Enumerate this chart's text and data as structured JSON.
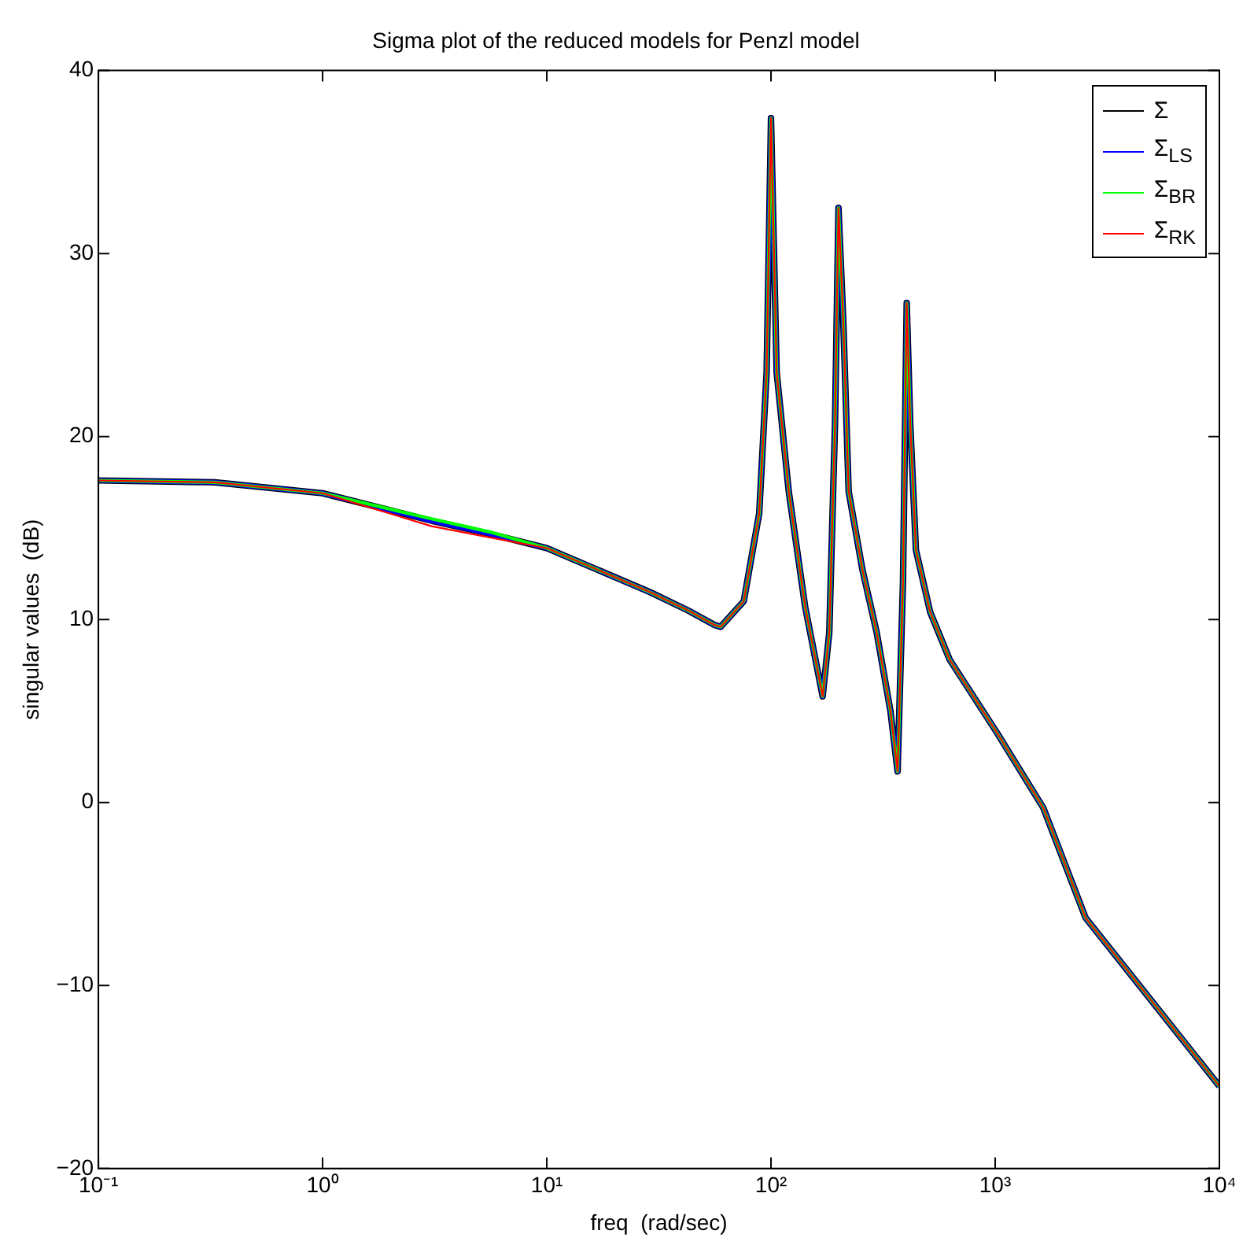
{
  "chart_data": {
    "type": "line",
    "title": "Sigma plot of the reduced models for Penzl model",
    "xlabel": "freq  (rad/sec)",
    "ylabel": "singular values  (dB)",
    "x": [
      0.1,
      0.33,
      1,
      3.06,
      5.5,
      10,
      28.8,
      42.6,
      56,
      59.6,
      75.6,
      88.6,
      95.6,
      100,
      106,
      120,
      142,
      170,
      182,
      193,
      200,
      210,
      222,
      256,
      296,
      341,
      367,
      388,
      403,
      418,
      443,
      513,
      627,
      1020,
      1640,
      2530,
      10000
    ],
    "series": [
      {
        "name": "Σ",
        "color": "#000000",
        "values": [
          17.6,
          17.5,
          16.9,
          15.4,
          14.7,
          13.9,
          11.5,
          10.5,
          9.7,
          9.6,
          11.0,
          15.8,
          23.5,
          37.4,
          23.5,
          17.0,
          10.7,
          5.8,
          9.3,
          20.7,
          32.5,
          26.4,
          17.0,
          12.7,
          9.3,
          5.0,
          1.7,
          12.1,
          27.3,
          20.7,
          13.8,
          10.4,
          7.8,
          3.8,
          -0.3,
          -6.3,
          -15.5
        ]
      },
      {
        "name": "Σ$_{LS}$",
        "color": "#0000ff",
        "values": [
          17.6,
          17.5,
          16.9,
          15.4,
          14.7,
          13.9,
          11.5,
          10.5,
          9.7,
          9.6,
          11.0,
          15.8,
          23.5,
          37.4,
          23.5,
          17.0,
          10.7,
          5.8,
          9.3,
          20.7,
          32.5,
          26.4,
          17.0,
          12.7,
          9.3,
          5.0,
          1.7,
          12.1,
          27.3,
          20.7,
          13.8,
          10.4,
          7.8,
          3.8,
          -0.3,
          -6.3,
          -15.5
        ]
      },
      {
        "name": "Σ$_{BR}$",
        "color": "#00ff00",
        "values": [
          17.6,
          17.5,
          16.9,
          15.5,
          14.8,
          13.9,
          11.5,
          10.5,
          9.7,
          9.6,
          11.0,
          15.8,
          23.5,
          37.4,
          23.5,
          17.0,
          10.7,
          5.8,
          9.3,
          20.7,
          32.5,
          26.4,
          17.0,
          12.7,
          9.3,
          5.0,
          1.7,
          12.1,
          27.3,
          20.7,
          13.8,
          10.4,
          7.8,
          3.8,
          -0.3,
          -6.3,
          -15.5
        ]
      },
      {
        "name": "Σ$_{RK}$",
        "color": "#ff0000",
        "values": [
          17.6,
          17.5,
          16.9,
          15.1,
          14.5,
          13.9,
          11.5,
          10.5,
          9.7,
          9.6,
          11.0,
          15.8,
          23.5,
          37.4,
          23.5,
          17.0,
          10.7,
          5.8,
          9.3,
          20.7,
          32.5,
          26.4,
          17.0,
          12.7,
          9.3,
          5.0,
          1.7,
          12.1,
          27.3,
          20.7,
          13.8,
          10.4,
          7.8,
          3.8,
          -0.3,
          -6.3,
          -15.5
        ]
      }
    ],
    "log": "x",
    "xlim": [
      0.1,
      10000
    ],
    "xticks": [
      {
        "value": 0.1,
        "label": "10⁻¹"
      },
      {
        "value": 1,
        "label": "10⁰"
      },
      {
        "value": 10,
        "label": "10¹"
      },
      {
        "value": 100,
        "label": "10²"
      },
      {
        "value": 1000,
        "label": "10³"
      },
      {
        "value": 10000,
        "label": "10⁴"
      }
    ],
    "ylim": [
      -20,
      40
    ],
    "yticks": [
      {
        "value": -20,
        "label": "−20"
      },
      {
        "value": -10,
        "label": "−10"
      },
      0,
      10,
      20,
      30,
      40
    ],
    "grid": false,
    "legend": "top right",
    "marker": "none",
    "line_style": "solid"
  }
}
